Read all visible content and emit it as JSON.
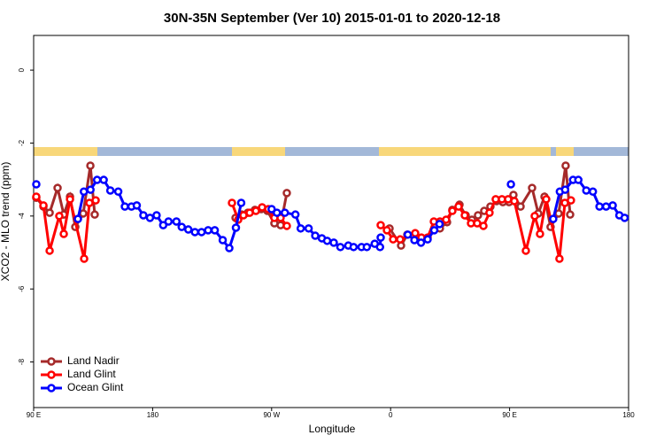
{
  "chart_data": {
    "type": "line",
    "title": "30N-35N September (Ver 10)   2015-01-01 to 2020-12-18",
    "x_label": "Longitude",
    "y_label": "XCO2 - MLO trend (ppm)",
    "xlim": [
      90,
      540
    ],
    "ylim": [
      -9.25,
      0.95
    ],
    "xticks": [
      {
        "value": 90,
        "label": "90 E"
      },
      180,
      {
        "value": 270,
        "label": "90 W"
      },
      {
        "value": 360,
        "label": "0"
      },
      {
        "value": 450,
        "label": "90 E"
      },
      {
        "value": 540,
        "label": "180"
      }
    ],
    "yticks": [
      0,
      -2,
      -4,
      -6,
      -8
    ],
    "legend": "bottom-left",
    "series": [
      {
        "name": "Land Nadir",
        "color": "#a52a2a",
        "x": [
          92.0,
          97.4,
          102.1,
          108.1,
          112.8,
          117.5,
          121.5,
          127.5,
          132.9,
          136.2,
          null,
          242.7,
          247.4,
          252.0,
          257.4,
          262.1,
          266.8,
          272.1,
          276.8,
          281.5,
          null,
          359.2,
          367.9,
          372.6,
          null,
          397.3,
          402.7,
          406.7,
          412.1,
          416.8,
          421.5,
          426.1,
          430.8,
          435.5,
          440.2,
          444.9,
          449.6,
          452.9,
          458.3,
          467.0,
          471.7,
          476.4,
          481.0,
          487.1,
          492.4,
          495.8
        ],
        "values": [
          -3.5,
          -3.74,
          -3.91,
          -3.23,
          -3.96,
          -3.47,
          -4.3,
          -3.93,
          -2.62,
          -3.96,
          null,
          -4.05,
          -3.96,
          -3.91,
          -3.83,
          -3.81,
          -3.86,
          -4.2,
          -4.25,
          -3.37,
          null,
          -4.34,
          -4.81,
          -4.51,
          null,
          -4.34,
          -4.17,
          -3.83,
          -3.69,
          -3.98,
          -4.1,
          -3.98,
          -3.86,
          -3.74,
          -3.59,
          -3.62,
          -3.62,
          -3.42,
          -3.74,
          -3.23,
          -3.93,
          -3.47,
          -4.3,
          -3.93,
          -2.62,
          -3.96
        ]
      },
      {
        "name": "Land Glint",
        "color": "#ff0000",
        "x": [
          92.0,
          97.4,
          102.1,
          109.4,
          112.8,
          117.5,
          128.2,
          132.2,
          136.9,
          null,
          240.0,
          244.7,
          248.7,
          253.4,
          258.1,
          262.8,
          267.5,
          272.1,
          276.8,
          281.5,
          null,
          352.5,
          357.2,
          361.9,
          367.2,
          378.6,
          383.3,
          388.0,
          392.7,
          397.3,
          402.0,
          406.7,
          411.4,
          416.1,
          420.8,
          425.5,
          430.2,
          434.8,
          439.5,
          444.2,
          448.9,
          453.6,
          462.3,
          469.0,
          473.0,
          477.7,
          487.7,
          491.8,
          496.4
        ],
        "values": [
          -3.47,
          -3.71,
          -4.95,
          -4.0,
          -4.49,
          -3.54,
          -5.17,
          -3.64,
          -3.57,
          null,
          -3.64,
          -4.1,
          -3.98,
          -3.91,
          -3.86,
          -3.76,
          -3.81,
          -4.05,
          -4.05,
          -4.27,
          null,
          -4.25,
          -4.39,
          -4.64,
          -4.64,
          -4.47,
          -4.59,
          -4.59,
          -4.15,
          -4.15,
          -4.1,
          -3.86,
          -3.74,
          -3.98,
          -4.2,
          -4.2,
          -4.27,
          -3.91,
          -3.54,
          -3.54,
          -3.54,
          -3.59,
          -4.95,
          -4.0,
          -4.49,
          -3.54,
          -5.17,
          -3.64,
          -3.57
        ]
      },
      {
        "name": "Ocean Glint",
        "color": "#0000ff",
        "x": [
          92,
          null,
          123.5,
          128,
          133,
          138,
          143,
          148,
          154,
          159,
          164,
          168,
          173,
          178,
          183,
          188,
          192,
          198,
          202,
          207,
          212,
          217,
          222,
          227,
          233,
          238,
          243,
          247,
          null,
          270,
          274,
          280,
          288,
          292,
          298,
          303,
          308,
          312,
          317,
          322,
          328,
          332,
          338,
          342,
          348,
          352,
          352.5,
          null,
          373,
          378,
          383,
          388,
          393,
          397,
          null,
          451,
          null,
          483,
          488,
          492,
          498,
          502,
          508,
          513,
          518,
          523,
          528,
          533,
          537
        ],
        "values": [
          -3.13,
          null,
          -4.08,
          -3.33,
          -3.28,
          -3.01,
          -3.01,
          -3.3,
          -3.33,
          -3.74,
          -3.74,
          -3.71,
          -3.98,
          -4.05,
          -3.98,
          -4.25,
          -4.15,
          -4.15,
          -4.3,
          -4.37,
          -4.44,
          -4.44,
          -4.39,
          -4.39,
          -4.66,
          -4.88,
          -4.32,
          -3.64,
          null,
          -3.81,
          -3.91,
          -3.91,
          -3.96,
          -4.34,
          -4.34,
          -4.54,
          -4.61,
          -4.68,
          -4.73,
          -4.85,
          -4.81,
          -4.85,
          -4.85,
          -4.85,
          -4.76,
          -4.85,
          -4.59,
          null,
          -4.51,
          -4.66,
          -4.73,
          -4.64,
          -4.39,
          -4.22,
          null,
          -3.13,
          null,
          -4.08,
          -3.33,
          -3.28,
          -3.01,
          -3.01,
          -3.3,
          -3.33,
          -3.74,
          -3.74,
          -3.71,
          -3.98,
          -4.05
        ]
      }
    ]
  }
}
